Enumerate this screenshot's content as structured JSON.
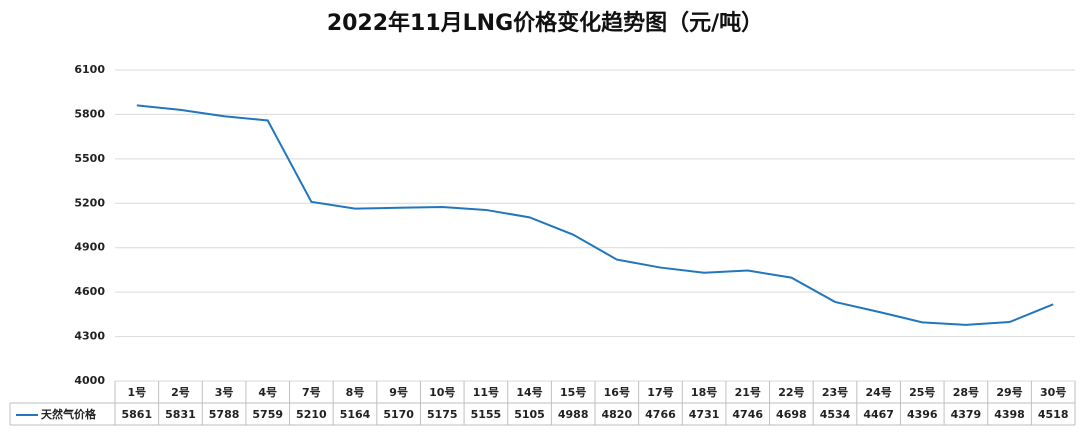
{
  "chart_data": {
    "type": "line",
    "title": "2022年11月LNG价格变化趋势图（元/吨）",
    "categories": [
      "1号",
      "2号",
      "3号",
      "4号",
      "7号",
      "8号",
      "9号",
      "10号",
      "11号",
      "14号",
      "15号",
      "16号",
      "17号",
      "18号",
      "21号",
      "22号",
      "23号",
      "24号",
      "25号",
      "28号",
      "29号",
      "30号"
    ],
    "series": [
      {
        "name": "天然气价格",
        "color": "#2276bd",
        "values": [
          5861,
          5831,
          5788,
          5759,
          5210,
          5164,
          5170,
          5175,
          5155,
          5105,
          4988,
          4820,
          4766,
          4731,
          4746,
          4698,
          4534,
          4467,
          4396,
          4379,
          4398,
          4518
        ]
      }
    ],
    "ylim": [
      4000,
      6100
    ],
    "yticks": [
      4000,
      4300,
      4600,
      4900,
      5200,
      5500,
      5800,
      6100
    ],
    "grid": true
  }
}
